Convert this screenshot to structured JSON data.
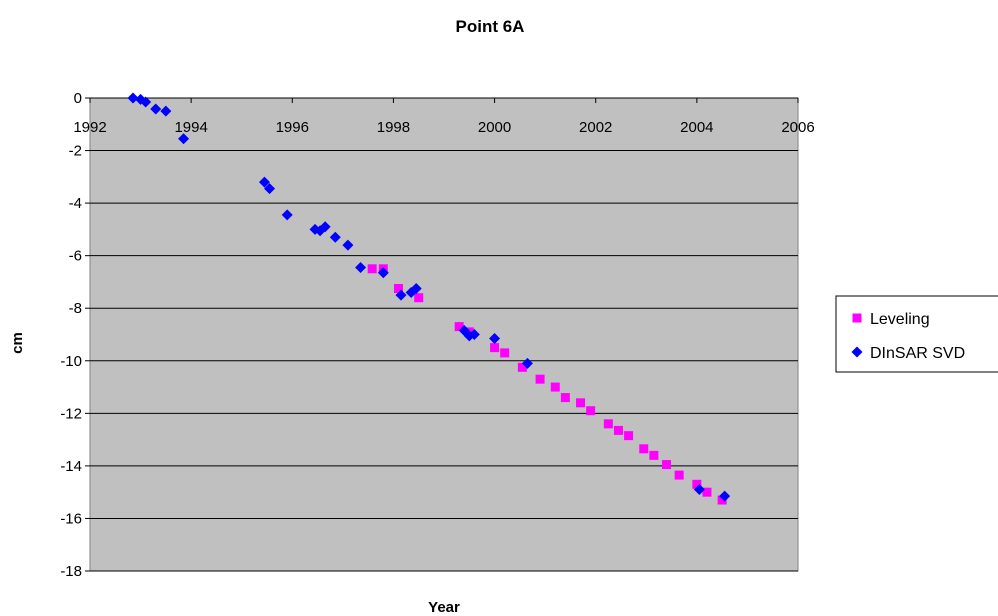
{
  "chart_data": {
    "type": "scatter",
    "title": "Point 6A",
    "xlabel": "Year",
    "ylabel": "cm",
    "xlim": [
      1992,
      2006
    ],
    "ylim": [
      -18,
      0
    ],
    "x_ticks": [
      "1992",
      "1994",
      "1996",
      "1998",
      "2000",
      "2002",
      "2004",
      "2006"
    ],
    "y_ticks": [
      "0",
      "-2",
      "-4",
      "-6",
      "-8",
      "-10",
      "-12",
      "-14",
      "-16",
      "-18"
    ],
    "grid": "horizontal",
    "background": "#c0c0c0",
    "legend_position": "right",
    "series": [
      {
        "name": "Leveling",
        "marker": "square",
        "color": "#ff00ff",
        "points": [
          [
            1997.58,
            -6.5
          ],
          [
            1997.8,
            -6.5
          ],
          [
            1998.1,
            -7.25
          ],
          [
            1998.5,
            -7.6
          ],
          [
            1999.3,
            -8.7
          ],
          [
            1999.5,
            -8.9
          ],
          [
            2000.0,
            -9.5
          ],
          [
            2000.2,
            -9.7
          ],
          [
            2000.55,
            -10.25
          ],
          [
            2000.9,
            -10.7
          ],
          [
            2001.2,
            -11.0
          ],
          [
            2001.4,
            -11.4
          ],
          [
            2001.7,
            -11.6
          ],
          [
            2001.9,
            -11.9
          ],
          [
            2002.25,
            -12.4
          ],
          [
            2002.45,
            -12.65
          ],
          [
            2002.65,
            -12.85
          ],
          [
            2002.95,
            -13.35
          ],
          [
            2003.15,
            -13.6
          ],
          [
            2003.4,
            -13.95
          ],
          [
            2003.65,
            -14.35
          ],
          [
            2004.0,
            -14.7
          ],
          [
            2004.2,
            -15.0
          ],
          [
            2004.5,
            -15.3
          ]
        ]
      },
      {
        "name": "DInSAR SVD",
        "marker": "diamond",
        "color": "#0000ff",
        "points": [
          [
            1992.85,
            0.0
          ],
          [
            1993.0,
            -0.05
          ],
          [
            1993.1,
            -0.15
          ],
          [
            1993.3,
            -0.42
          ],
          [
            1993.5,
            -0.5
          ],
          [
            1993.85,
            -1.55
          ],
          [
            1995.45,
            -3.2
          ],
          [
            1995.55,
            -3.45
          ],
          [
            1995.9,
            -4.45
          ],
          [
            1996.45,
            -5.0
          ],
          [
            1996.55,
            -5.05
          ],
          [
            1996.65,
            -4.9
          ],
          [
            1996.85,
            -5.3
          ],
          [
            1997.1,
            -5.6
          ],
          [
            1997.35,
            -6.45
          ],
          [
            1997.8,
            -6.65
          ],
          [
            1998.15,
            -7.5
          ],
          [
            1998.35,
            -7.4
          ],
          [
            1998.45,
            -7.25
          ],
          [
            1999.4,
            -8.85
          ],
          [
            1999.5,
            -9.05
          ],
          [
            1999.6,
            -9.0
          ],
          [
            2000.0,
            -9.15
          ],
          [
            2000.65,
            -10.1
          ],
          [
            2004.05,
            -14.9
          ],
          [
            2004.55,
            -15.15
          ]
        ]
      }
    ]
  }
}
